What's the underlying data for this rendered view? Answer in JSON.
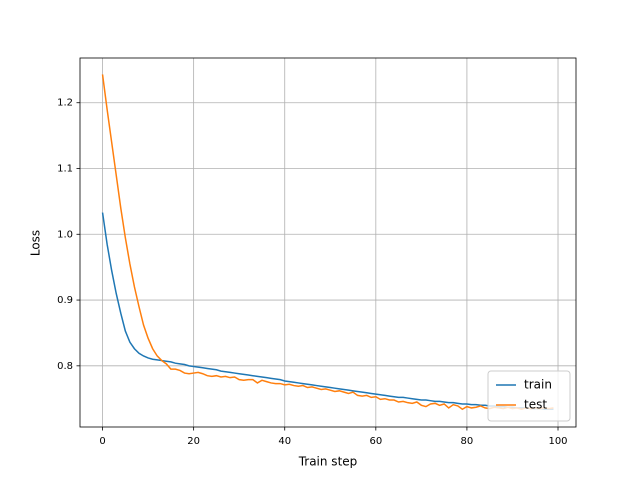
{
  "chart_data": {
    "type": "line",
    "xlabel": "Train step",
    "ylabel": "Loss",
    "x": [
      0,
      1,
      2,
      3,
      4,
      5,
      6,
      7,
      8,
      9,
      10,
      11,
      12,
      13,
      14,
      15,
      16,
      17,
      18,
      19,
      20,
      21,
      22,
      23,
      24,
      25,
      26,
      27,
      28,
      29,
      30,
      31,
      32,
      33,
      34,
      35,
      36,
      37,
      38,
      39,
      40,
      41,
      42,
      43,
      44,
      45,
      46,
      47,
      48,
      49,
      50,
      51,
      52,
      53,
      54,
      55,
      56,
      57,
      58,
      59,
      60,
      61,
      62,
      63,
      64,
      65,
      66,
      67,
      68,
      69,
      70,
      71,
      72,
      73,
      74,
      75,
      76,
      77,
      78,
      79,
      80,
      81,
      82,
      83,
      84,
      85,
      86,
      87,
      88,
      89,
      90,
      91,
      92,
      93,
      94,
      95,
      96,
      97,
      98,
      99
    ],
    "series": [
      {
        "name": "train",
        "color": "#1f77b4",
        "values": [
          1.033,
          0.985,
          0.945,
          0.91,
          0.88,
          0.853,
          0.836,
          0.826,
          0.819,
          0.815,
          0.812,
          0.81,
          0.809,
          0.808,
          0.807,
          0.806,
          0.804,
          0.803,
          0.802,
          0.8,
          0.799,
          0.798,
          0.797,
          0.796,
          0.795,
          0.794,
          0.792,
          0.791,
          0.79,
          0.789,
          0.788,
          0.787,
          0.786,
          0.785,
          0.784,
          0.783,
          0.782,
          0.781,
          0.78,
          0.779,
          0.777,
          0.776,
          0.775,
          0.774,
          0.773,
          0.772,
          0.771,
          0.77,
          0.769,
          0.768,
          0.767,
          0.766,
          0.765,
          0.764,
          0.763,
          0.762,
          0.761,
          0.76,
          0.759,
          0.758,
          0.757,
          0.756,
          0.755,
          0.754,
          0.753,
          0.752,
          0.752,
          0.751,
          0.75,
          0.749,
          0.748,
          0.748,
          0.747,
          0.746,
          0.746,
          0.745,
          0.744,
          0.744,
          0.743,
          0.742,
          0.742,
          0.741,
          0.741,
          0.74,
          0.74,
          0.739,
          0.739,
          0.738,
          0.738,
          0.737,
          0.737,
          0.736,
          0.736,
          0.736,
          0.735,
          0.735,
          0.735,
          0.734,
          0.734,
          0.734
        ]
      },
      {
        "name": "test",
        "color": "#ff7f0e",
        "values": [
          1.243,
          1.19,
          1.14,
          1.09,
          1.04,
          0.995,
          0.955,
          0.92,
          0.89,
          0.862,
          0.842,
          0.826,
          0.815,
          0.808,
          0.803,
          0.795,
          0.795,
          0.793,
          0.789,
          0.788,
          0.789,
          0.79,
          0.788,
          0.785,
          0.784,
          0.785,
          0.783,
          0.784,
          0.782,
          0.783,
          0.779,
          0.778,
          0.779,
          0.779,
          0.774,
          0.778,
          0.776,
          0.774,
          0.773,
          0.773,
          0.771,
          0.772,
          0.77,
          0.769,
          0.77,
          0.767,
          0.768,
          0.766,
          0.764,
          0.765,
          0.763,
          0.761,
          0.762,
          0.76,
          0.758,
          0.76,
          0.755,
          0.754,
          0.755,
          0.752,
          0.753,
          0.749,
          0.75,
          0.748,
          0.748,
          0.745,
          0.746,
          0.744,
          0.743,
          0.745,
          0.74,
          0.738,
          0.742,
          0.743,
          0.74,
          0.742,
          0.736,
          0.741,
          0.739,
          0.734,
          0.738,
          0.736,
          0.737,
          0.739,
          0.736,
          0.735,
          0.737,
          0.736,
          0.735,
          0.737,
          0.735,
          0.736,
          0.734,
          0.736,
          0.735,
          0.736,
          0.735,
          0.736,
          0.735,
          0.736
        ]
      }
    ],
    "xlim": [
      -4.95,
      103.95
    ],
    "xticks": [
      0,
      20,
      40,
      60,
      80,
      100
    ],
    "ylim": [
      0.707,
      1.268
    ],
    "yticks": [
      0.8,
      0.9,
      {
        "value": 1,
        "label": "1.0"
      },
      1.1,
      1.2
    ],
    "grid": true,
    "legend": "lower right"
  }
}
